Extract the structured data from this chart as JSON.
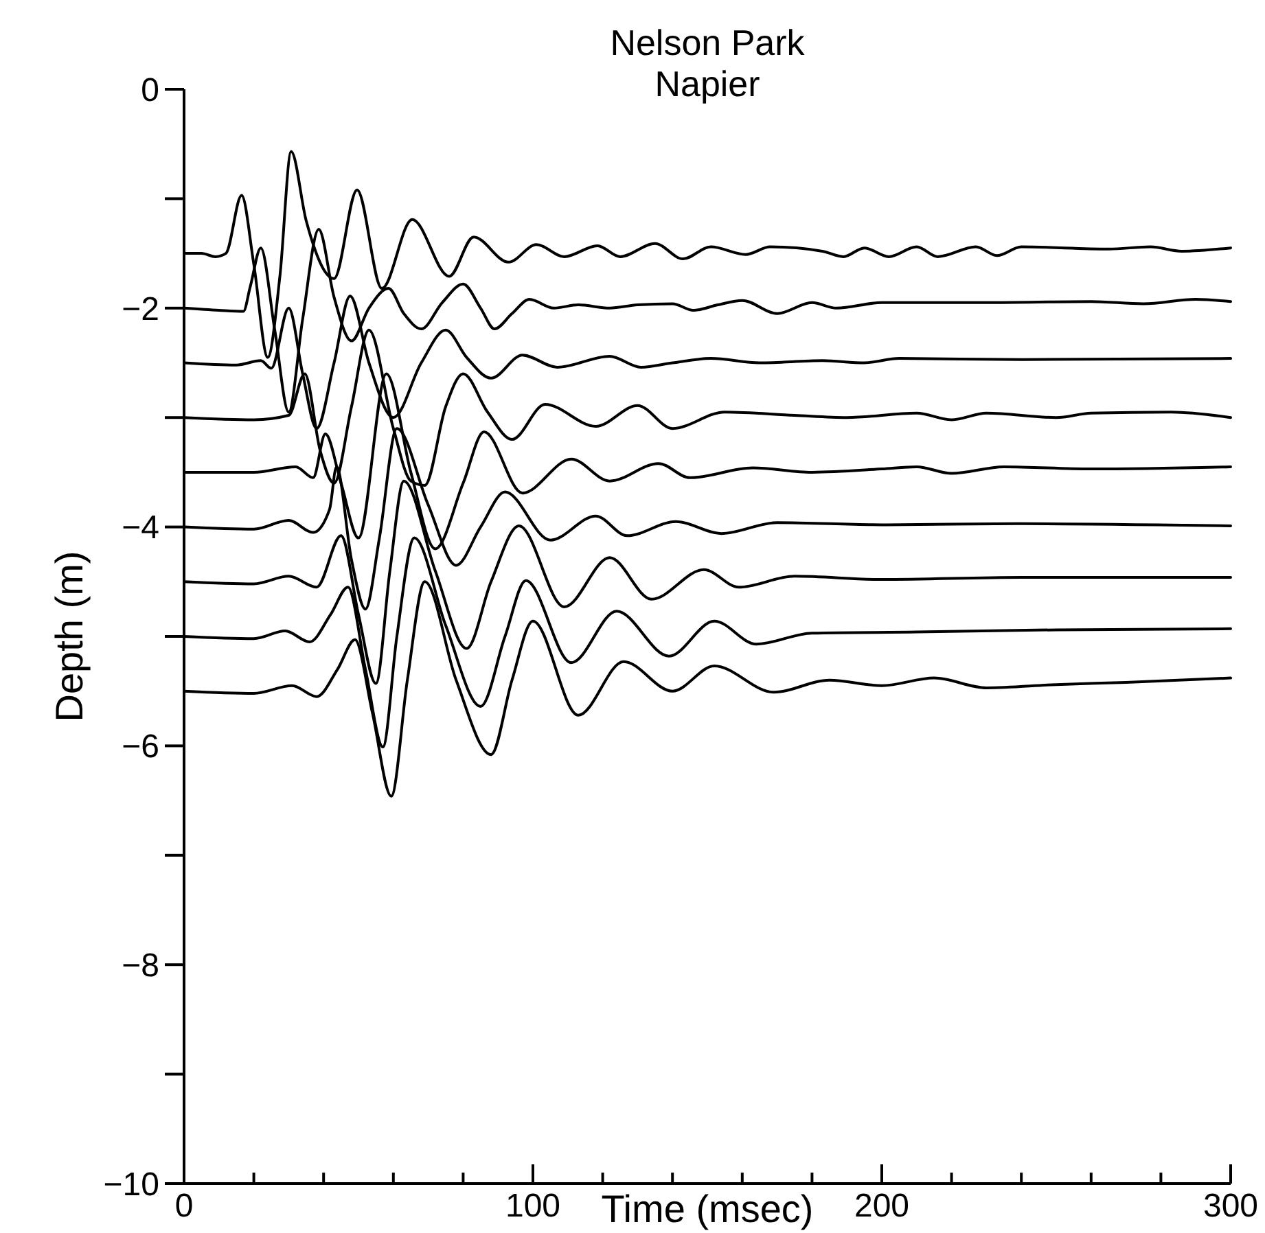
{
  "chart_data": {
    "type": "line",
    "title": "Nelson Park",
    "subtitle": "Napier",
    "xlabel": "Time (msec)",
    "ylabel": "Depth (m)",
    "xlim": [
      0,
      300
    ],
    "ylim": [
      -10,
      0
    ],
    "xticks": [
      0,
      {
        "value": 20,
        "label": null
      },
      {
        "value": 40,
        "label": null
      },
      {
        "value": 60,
        "label": null
      },
      {
        "value": 80,
        "label": null
      },
      100,
      {
        "value": 120,
        "label": null
      },
      {
        "value": 140,
        "label": null
      },
      {
        "value": 160,
        "label": null
      },
      {
        "value": 180,
        "label": null
      },
      200,
      {
        "value": 220,
        "label": null
      },
      {
        "value": 240,
        "label": null
      },
      {
        "value": 260,
        "label": null
      },
      {
        "value": 280,
        "label": null
      },
      300
    ],
    "yticks": [
      -10,
      {
        "value": -9,
        "label": null
      },
      -8,
      {
        "value": -7,
        "label": null
      },
      -6,
      {
        "value": -5,
        "label": null
      },
      -4,
      {
        "value": -3,
        "label": null
      },
      -2,
      {
        "value": -1,
        "label": null
      },
      0
    ],
    "marker": "none",
    "line_style": "solid",
    "series": [
      {
        "color": "#000000",
        "x": [
          0,
          5,
          9,
          12,
          16.5,
          20,
          24,
          27.5,
          30.7,
          35,
          43,
          49.6,
          56.7,
          65.4,
          76,
          83,
          93,
          101,
          109,
          118.5,
          125,
          135,
          143,
          151,
          161,
          168,
          183,
          189,
          195,
          202,
          210,
          216,
          227,
          233,
          240,
          265,
          277,
          286,
          300
        ],
        "values": [
          -1.5,
          -1.5,
          -1.53,
          -1.5,
          -0.97,
          -1.6,
          -2.45,
          -1.7,
          -0.57,
          -1.2,
          -1.73,
          -0.92,
          -1.82,
          -1.19,
          -1.71,
          -1.35,
          -1.58,
          -1.42,
          -1.53,
          -1.43,
          -1.53,
          -1.41,
          -1.55,
          -1.44,
          -1.51,
          -1.44,
          -1.48,
          -1.53,
          -1.45,
          -1.53,
          -1.44,
          -1.53,
          -1.44,
          -1.52,
          -1.44,
          -1.46,
          -1.44,
          -1.48,
          -1.45
        ]
      },
      {
        "color": "#000000",
        "x": [
          0,
          10,
          17,
          19,
          22,
          26,
          30,
          34,
          38.6,
          43,
          48,
          53,
          58.6,
          63,
          68,
          74,
          80,
          85,
          89,
          94,
          99,
          106,
          113,
          122,
          130,
          140,
          146,
          153,
          160,
          170,
          180,
          187,
          200,
          230,
          260,
          275,
          290,
          300
        ],
        "values": [
          -2,
          -2.02,
          -2.03,
          -1.8,
          -1.45,
          -2.2,
          -2.95,
          -2.1,
          -1.28,
          -1.9,
          -2.3,
          -2,
          -1.82,
          -2.05,
          -2.19,
          -1.95,
          -1.78,
          -2,
          -2.19,
          -2.05,
          -1.92,
          -2,
          -1.97,
          -2,
          -1.97,
          -1.96,
          -2.02,
          -1.97,
          -1.93,
          -2.05,
          -1.95,
          -2,
          -1.95,
          -1.95,
          -1.94,
          -1.96,
          -1.92,
          -1.94
        ]
      },
      {
        "color": "#000000",
        "x": [
          0,
          15,
          22,
          25,
          30,
          34,
          38,
          43,
          47.6,
          53,
          60,
          68,
          75,
          81,
          88,
          97,
          107,
          122,
          131,
          140,
          151,
          165,
          183,
          195,
          205,
          240,
          300
        ],
        "values": [
          -2.5,
          -2.52,
          -2.48,
          -2.55,
          -2,
          -2.6,
          -3.1,
          -2.5,
          -1.89,
          -2.5,
          -3,
          -2.5,
          -2.2,
          -2.45,
          -2.64,
          -2.43,
          -2.54,
          -2.44,
          -2.54,
          -2.5,
          -2.46,
          -2.5,
          -2.48,
          -2.5,
          -2.46,
          -2.47,
          -2.46
        ]
      },
      {
        "color": "#000000",
        "x": [
          0,
          20,
          30,
          34.6,
          39,
          43,
          48,
          53,
          60,
          65,
          69,
          75,
          80,
          87,
          94,
          103.5,
          118,
          130,
          140,
          155,
          175,
          190,
          210,
          220,
          230,
          250,
          260,
          283,
          300
        ],
        "values": [
          -3,
          -3.02,
          -2.98,
          -2.6,
          -3.3,
          -3.6,
          -2.9,
          -2.2,
          -3.1,
          -3.58,
          -3.62,
          -2.9,
          -2.6,
          -2.95,
          -3.2,
          -2.88,
          -3.08,
          -2.89,
          -3.1,
          -2.95,
          -2.98,
          -3.0,
          -2.96,
          -3.02,
          -2.96,
          -3.0,
          -2.96,
          -2.95,
          -3.0
        ]
      },
      {
        "color": "#000000",
        "x": [
          0,
          20,
          32,
          37,
          40.5,
          45,
          50,
          58,
          65,
          72,
          80,
          86,
          97,
          111,
          122,
          136,
          145,
          163,
          180,
          200,
          210,
          220,
          235,
          260,
          300
        ],
        "values": [
          -3.5,
          -3.5,
          -3.45,
          -3.55,
          -3.15,
          -3.6,
          -4.1,
          -2.6,
          -3.5,
          -4.2,
          -3.6,
          -3.13,
          -3.69,
          -3.38,
          -3.58,
          -3.42,
          -3.55,
          -3.46,
          -3.5,
          -3.47,
          -3.45,
          -3.51,
          -3.45,
          -3.47,
          -3.45
        ]
      },
      {
        "color": "#000000",
        "x": [
          0,
          20,
          30,
          37,
          41.7,
          43.7,
          48,
          52,
          56,
          61,
          70,
          78,
          85,
          92,
          105,
          118,
          127,
          141,
          154,
          170,
          200,
          240,
          300
        ],
        "values": [
          -4,
          -4.02,
          -3.94,
          -4.05,
          -3.84,
          -3.45,
          -4.3,
          -4.75,
          -4.1,
          -3.1,
          -3.8,
          -4.35,
          -4.0,
          -3.68,
          -4.12,
          -3.9,
          -4.08,
          -3.95,
          -4.06,
          -3.96,
          -3.98,
          -3.97,
          -3.99
        ]
      },
      {
        "color": "#000000",
        "x": [
          0,
          20,
          30,
          38,
          45,
          50,
          55,
          59,
          63,
          72,
          81,
          88,
          96,
          109,
          122,
          134,
          149,
          159,
          175,
          200,
          240,
          300
        ],
        "values": [
          -4.5,
          -4.52,
          -4.45,
          -4.55,
          -4.08,
          -4.8,
          -5.43,
          -4.4,
          -3.58,
          -4.4,
          -5.11,
          -4.5,
          -3.99,
          -4.73,
          -4.28,
          -4.66,
          -4.39,
          -4.55,
          -4.45,
          -4.48,
          -4.46,
          -4.46
        ]
      },
      {
        "color": "#000000",
        "x": [
          0,
          20,
          29,
          36,
          42,
          47,
          52,
          57,
          61,
          66,
          75,
          85,
          92,
          98,
          111,
          124,
          139,
          152,
          164,
          180,
          210,
          250,
          300
        ],
        "values": [
          -5,
          -5.02,
          -4.95,
          -5.05,
          -4.8,
          -4.55,
          -5.3,
          -6.01,
          -5.0,
          -4.1,
          -4.9,
          -5.64,
          -5.0,
          -4.49,
          -5.24,
          -4.77,
          -5.18,
          -4.86,
          -5.07,
          -4.97,
          -4.96,
          -4.94,
          -4.93
        ]
      },
      {
        "color": "#000000",
        "x": [
          0,
          20,
          31,
          38,
          44,
          49,
          54,
          59.4,
          64,
          69,
          78,
          88,
          94,
          100,
          113,
          126,
          140,
          152,
          169,
          185,
          200,
          215,
          230,
          250,
          270,
          300
        ],
        "values": [
          -5.5,
          -5.52,
          -5.45,
          -5.55,
          -5.3,
          -5.03,
          -5.7,
          -6.46,
          -5.4,
          -4.5,
          -5.4,
          -6.08,
          -5.4,
          -4.86,
          -5.72,
          -5.23,
          -5.5,
          -5.27,
          -5.51,
          -5.4,
          -5.45,
          -5.38,
          -5.47,
          -5.44,
          -5.42,
          -5.38
        ]
      }
    ]
  }
}
